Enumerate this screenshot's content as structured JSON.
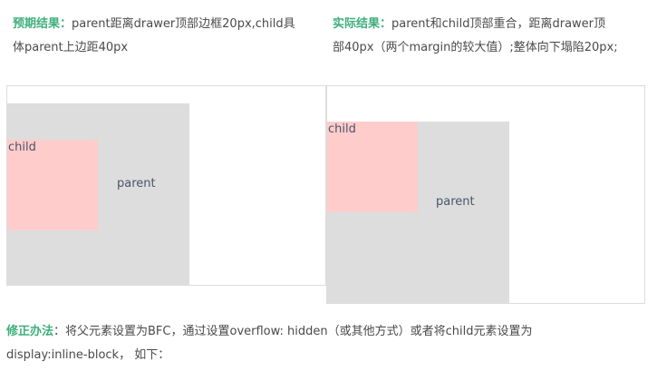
{
  "expected": {
    "label": "预期结果：",
    "line1": "parent距离drawer顶部边框20px,child具",
    "line2": "体parent上边距40px"
  },
  "actual": {
    "label": "实际结果：",
    "line1": "parent和child顶部重合，距离drawer顶",
    "line2": "部40px（两个margin的较大值）;整体向下塌陷20px;"
  },
  "demo_left": {
    "child_label": "child",
    "parent_label": "parent"
  },
  "demo_right": {
    "child_label": "child",
    "parent_label": "parent"
  },
  "fix": {
    "label": "修正办法",
    "line1": "：将父元素设置为BFC，通过设置overflow: hidden（或其他方式）或者将child元素设置为",
    "line2": "display:inline-block，  如下："
  },
  "colors": {
    "accent": "#3eaf7c",
    "parent_bg": "#dddddd",
    "child_bg": "#ffcccc",
    "border": "#dddddd"
  }
}
